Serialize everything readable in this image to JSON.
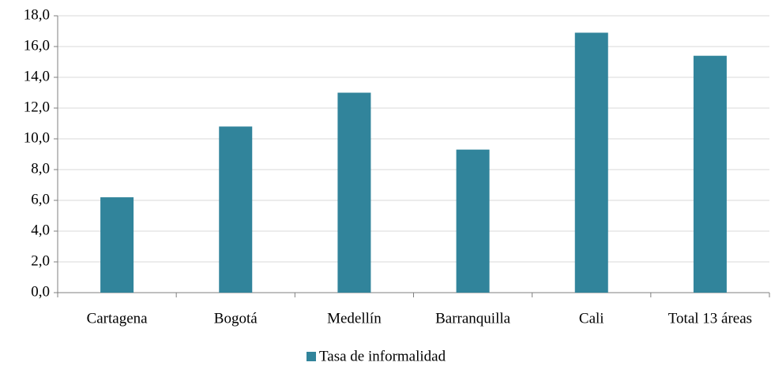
{
  "chart_data": {
    "type": "bar",
    "categories": [
      "Cartagena",
      "Bogotá",
      "Medellín",
      "Barranquilla",
      "Cali",
      "Total 13 áreas"
    ],
    "series": [
      {
        "name": "Tasa de informalidad",
        "color": "#31849b",
        "values": [
          6.2,
          10.8,
          13.0,
          9.3,
          16.9,
          15.4
        ]
      }
    ],
    "ylim": [
      0,
      18
    ],
    "yticks": [
      {
        "value": 0,
        "label": "0,0"
      },
      {
        "value": 2,
        "label": "2,0"
      },
      {
        "value": 4,
        "label": "4,0"
      },
      {
        "value": 6,
        "label": "6,0"
      },
      {
        "value": 8,
        "label": "8,0"
      },
      {
        "value": 10,
        "label": "10,0"
      },
      {
        "value": 12,
        "label": "12,0"
      },
      {
        "value": 14,
        "label": "14,0"
      },
      {
        "value": 16,
        "label": "16,0"
      },
      {
        "value": 18,
        "label": "18,0"
      }
    ],
    "grid": true,
    "legend": "bottom"
  }
}
